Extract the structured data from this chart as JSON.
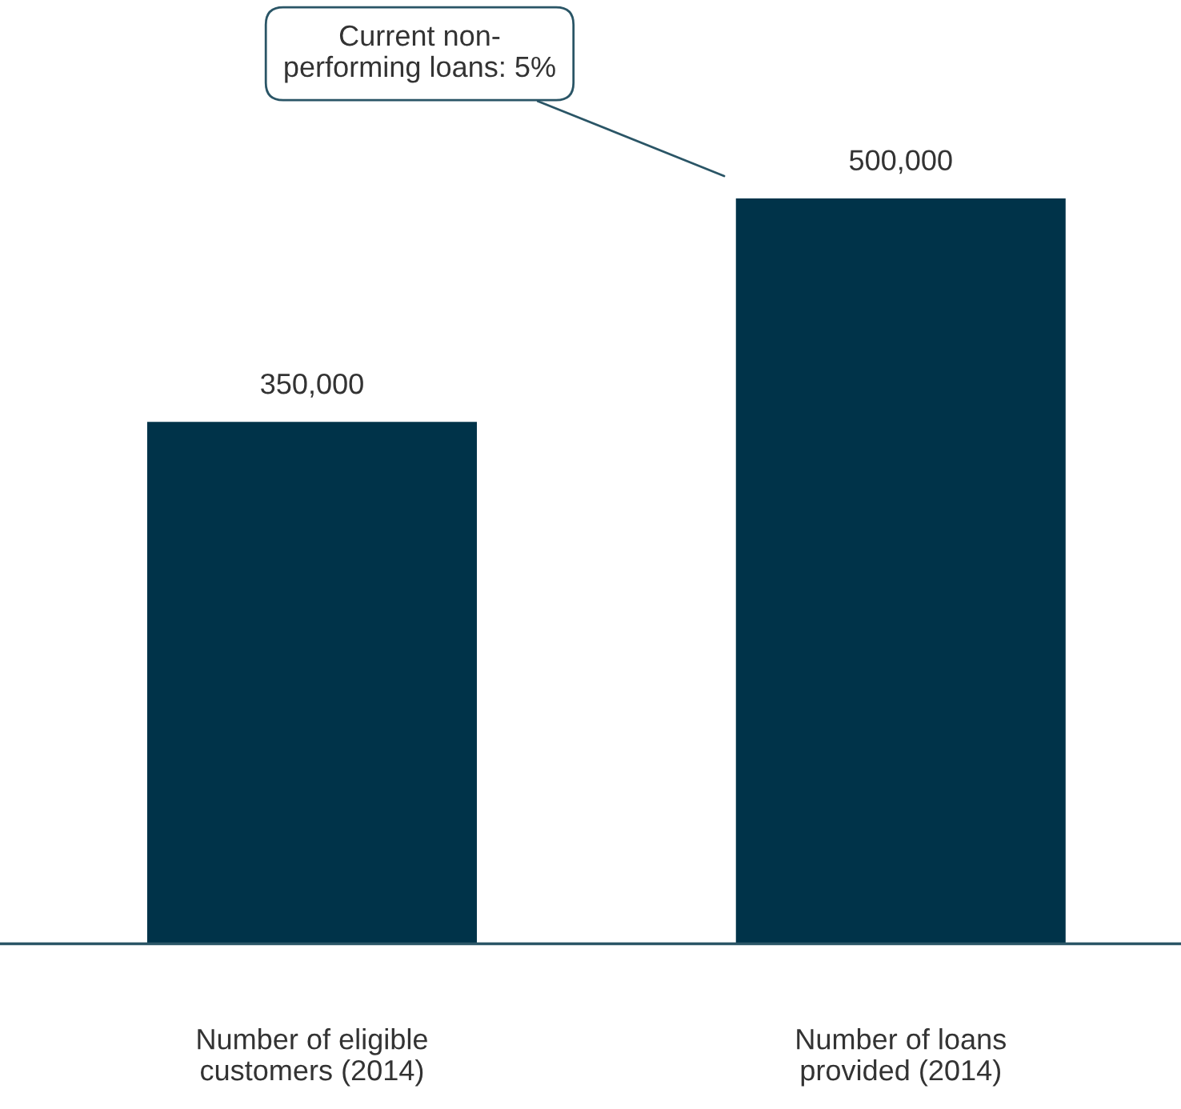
{
  "chart_data": {
    "type": "bar",
    "categories": [
      "Number of eligible\ncustomers (2014)",
      "Number of loans\nprovided (2014)"
    ],
    "values": [
      350000,
      500000
    ],
    "color": "#003349",
    "data_labels": true,
    "value_labels": [
      "350,000",
      "500,000"
    ],
    "annotations": [
      "Current non-\nperforming loans: 5%"
    ],
    "grid": false,
    "legend": false
  }
}
